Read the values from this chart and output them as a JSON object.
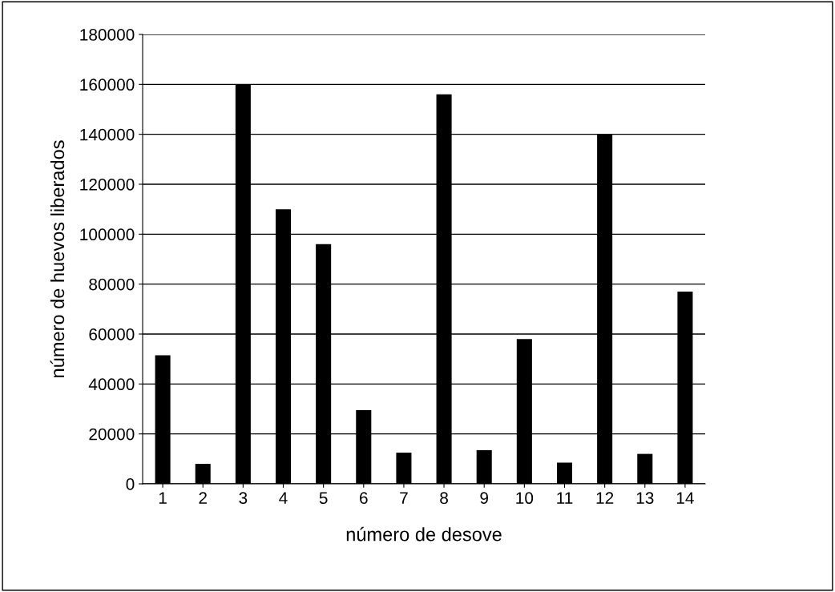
{
  "chart_data": {
    "type": "bar",
    "xlabel": "número de desove",
    "ylabel": "número de huevos liberados",
    "categories": [
      "1",
      "2",
      "3",
      "4",
      "5",
      "6",
      "7",
      "8",
      "9",
      "10",
      "11",
      "12",
      "13",
      "14"
    ],
    "values": [
      51500,
      8000,
      160000,
      110000,
      96000,
      29500,
      12500,
      156000,
      13500,
      58000,
      8500,
      140000,
      12000,
      77000
    ],
    "color": "#000000",
    "ylim": [
      0,
      180000
    ],
    "yticks": [
      0,
      20000,
      40000,
      60000,
      80000,
      100000,
      120000,
      140000,
      160000,
      180000
    ],
    "grid": "y"
  }
}
